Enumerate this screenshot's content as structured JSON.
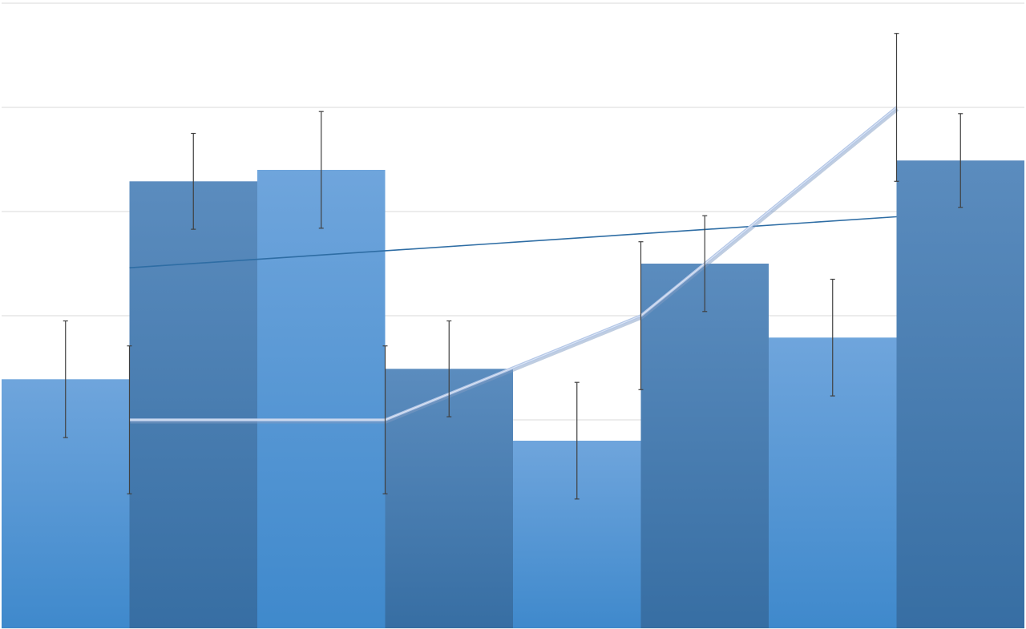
{
  "chart_data": {
    "type": "bar",
    "title": "",
    "xlabel": "",
    "ylabel": "",
    "ylim": [
      0,
      6
    ],
    "grid": true,
    "gridline_step": 1,
    "legend": "none",
    "bars": {
      "values": [
        2.39,
        4.29,
        4.4,
        2.49,
        1.8,
        3.5,
        2.79,
        4.49
      ],
      "error": [
        0.56,
        0.46,
        0.56,
        0.46,
        0.56,
        0.46,
        0.56,
        0.45
      ],
      "colors": [
        "light",
        "dark",
        "light",
        "dark",
        "light",
        "dark",
        "light",
        "dark"
      ]
    },
    "line": {
      "type": "line",
      "x": [
        1,
        3,
        5,
        7
      ],
      "values": [
        2.0,
        2.0,
        3.0,
        5.0
      ],
      "error": [
        0.71,
        0.71,
        0.71,
        0.71
      ],
      "color": "#b4c7e7"
    },
    "trendline": {
      "x": [
        1,
        7
      ],
      "values": [
        3.46,
        3.95
      ],
      "color": "#2e6da4"
    },
    "colors": {
      "light_top": "#6fa5dc",
      "light_bottom": "#3f89cc",
      "dark_top": "#5b8cbe",
      "dark_bottom": "#376ea3",
      "grid": "#d9d9d9",
      "error_bar": "#404040"
    }
  }
}
